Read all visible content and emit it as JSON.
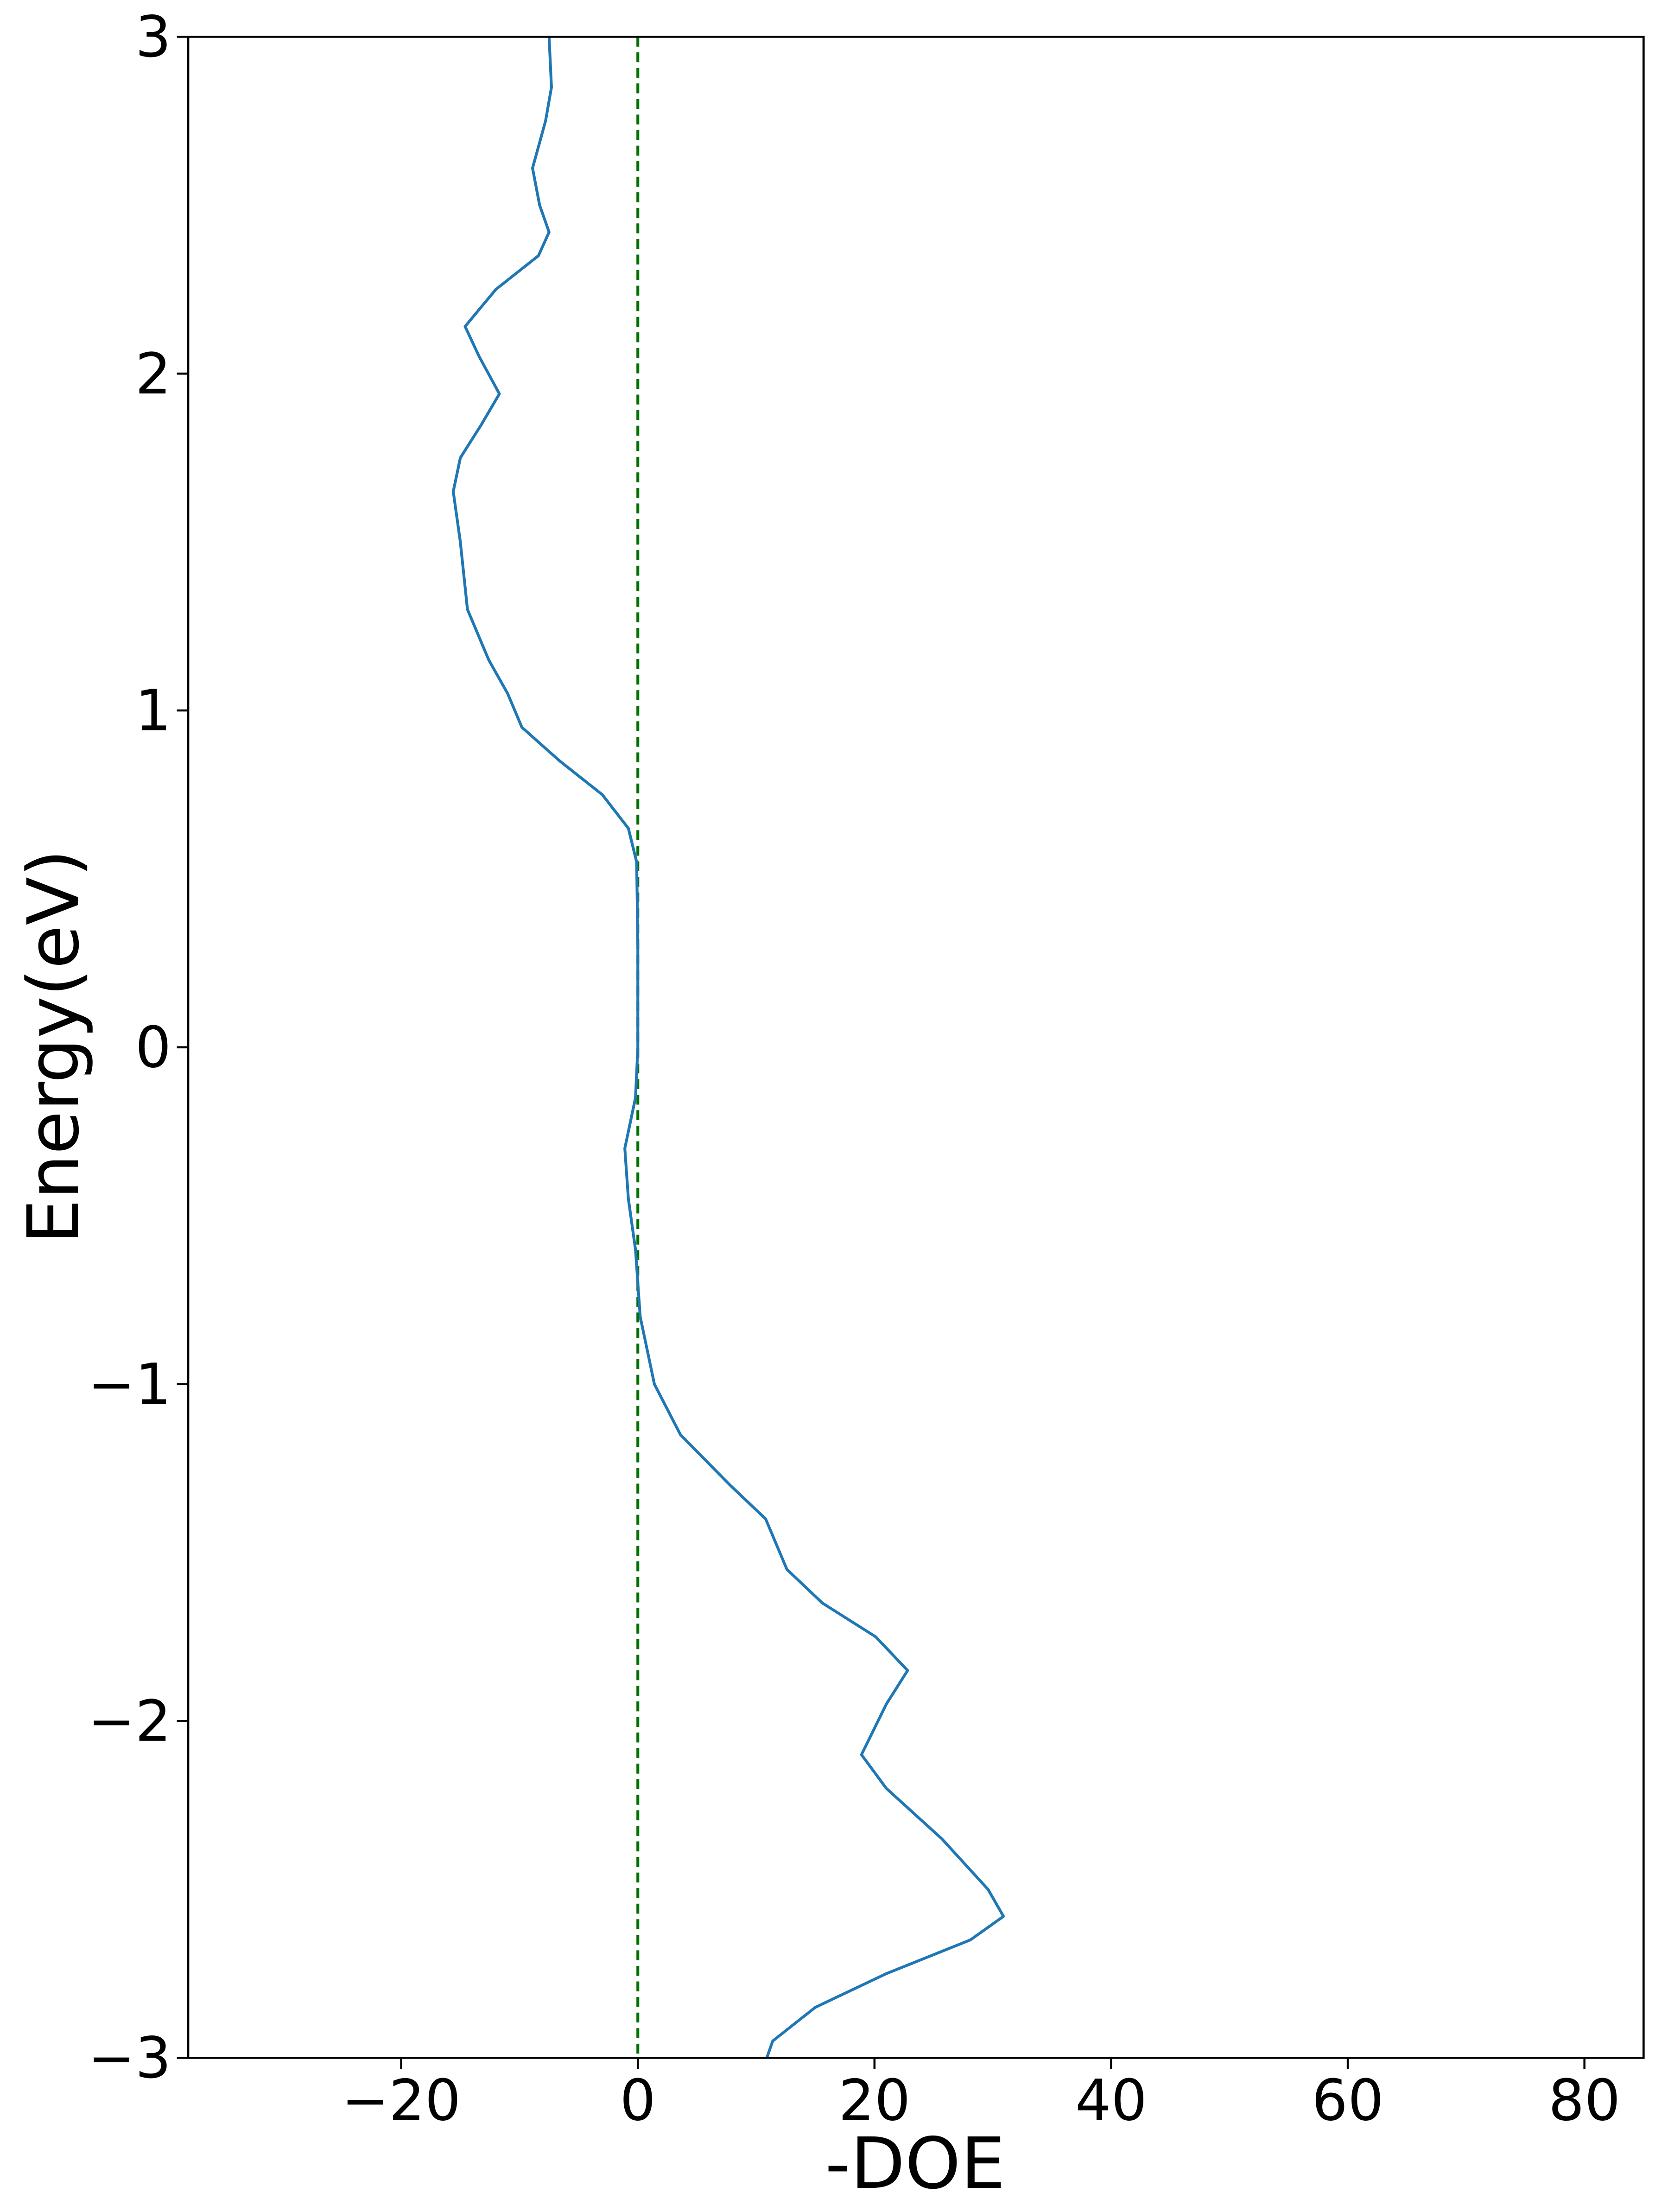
{
  "chart_data": {
    "type": "line",
    "orientation": "horizontal",
    "xlabel": "-DOE",
    "ylabel": "Energy(eV)",
    "color": "#1f77b4",
    "vline": {
      "value": 0,
      "color": "#007000",
      "dash": true
    },
    "y": [
      3.0,
      2.85,
      2.75,
      2.61,
      2.5,
      2.42,
      2.35,
      2.25,
      2.14,
      2.05,
      1.94,
      1.85,
      1.75,
      1.65,
      1.5,
      1.3,
      1.15,
      1.05,
      0.95,
      0.85,
      0.75,
      0.65,
      0.55,
      0.3,
      0.0,
      -0.15,
      -0.3,
      -0.45,
      -0.6,
      -0.8,
      -1.0,
      -1.15,
      -1.3,
      -1.4,
      -1.55,
      -1.65,
      -1.75,
      -1.85,
      -1.95,
      -2.1,
      -2.2,
      -2.35,
      -2.5,
      -2.58,
      -2.65,
      -2.75,
      -2.85,
      -2.95,
      -3.0
    ],
    "values": [
      -7.5,
      -7.3,
      -7.8,
      -8.9,
      -8.3,
      -7.5,
      -8.4,
      -12,
      -14.6,
      -13.4,
      -11.7,
      -13.2,
      -15,
      -15.6,
      -15,
      -14.4,
      -12.6,
      -11,
      -9.8,
      -6.6,
      -3,
      -0.8,
      -0.1,
      0,
      0,
      -0.2,
      -1.1,
      -0.8,
      -0.2,
      0.2,
      1.4,
      3.6,
      7.8,
      10.8,
      12.6,
      15.6,
      20.1,
      22.8,
      21,
      18.9,
      21,
      25.7,
      29.6,
      30.9,
      28.1,
      21,
      15,
      11.4,
      10.9
    ],
    "xlim": [
      -38,
      85
    ],
    "ylim": [
      -3,
      3
    ],
    "xticks": [
      {
        "value": -20,
        "label": "−20"
      },
      0,
      20,
      40,
      60,
      80
    ],
    "yticks": [
      {
        "value": -3,
        "label": "−3"
      },
      {
        "value": -2,
        "label": "−2"
      },
      {
        "value": -1,
        "label": "−1"
      },
      0,
      1,
      2,
      3
    ]
  }
}
